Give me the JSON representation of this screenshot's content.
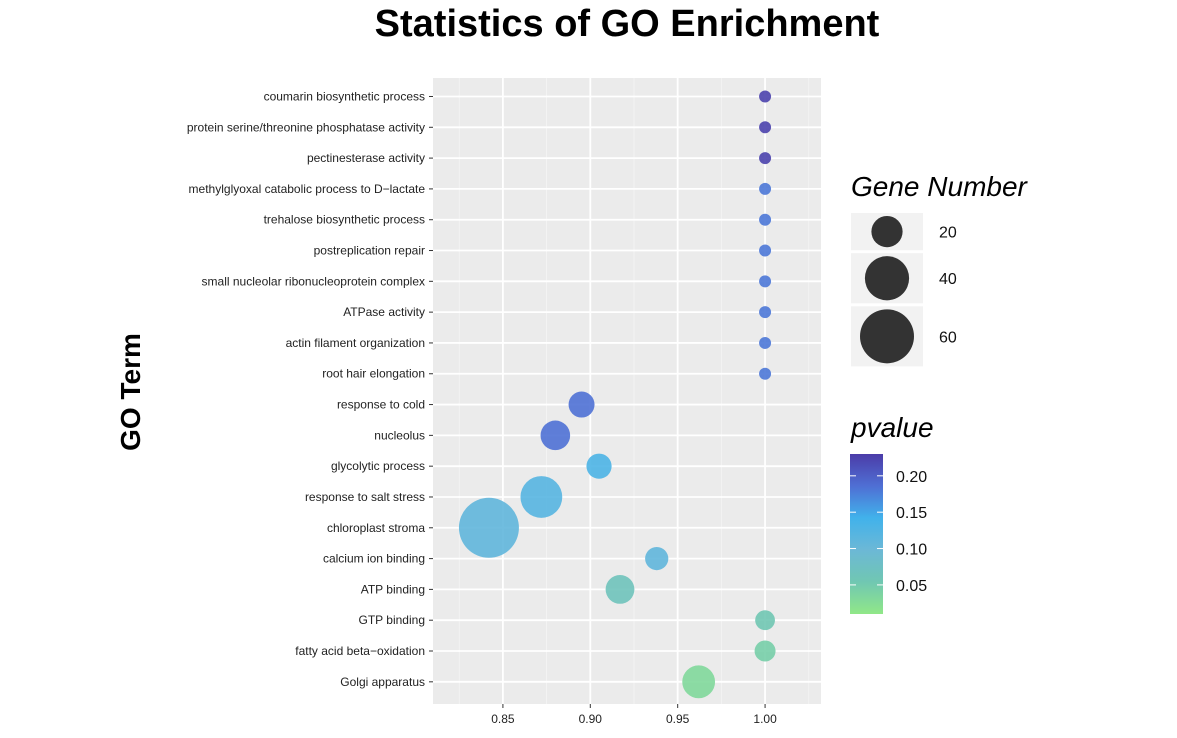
{
  "chart_data": {
    "type": "scatter",
    "title": "Statistics of GO Enrichment",
    "xlabel": "",
    "ylabel": "GO Term",
    "xlim": [
      0.81,
      1.032
    ],
    "xticks": [
      "0.85",
      "0.90",
      "0.95",
      "1.00"
    ],
    "xtick_values": [
      0.85,
      0.9,
      0.95,
      1.0
    ],
    "grid": true,
    "categories": [
      "coumarin biosynthetic process",
      "protein serine/threonine phosphatase activity",
      "pectinesterase activity",
      "methylglyoxal catabolic process to D−lactate",
      "trehalose biosynthetic process",
      "postreplication repair",
      "small nucleolar ribonucleoprotein complex",
      "ATPase activity",
      "actin filament organization",
      "root hair elongation",
      "response to cold",
      "nucleolus",
      "glycolytic process",
      "response to salt stress",
      "chloroplast stroma",
      "calcium ion binding",
      "ATP binding",
      "GTP binding",
      "fatty acid beta−oxidation",
      "Golgi apparatus"
    ],
    "x": [
      1.0,
      1.0,
      1.0,
      1.0,
      1.0,
      1.0,
      1.0,
      1.0,
      1.0,
      1.0,
      0.895,
      0.88,
      0.905,
      0.872,
      0.842,
      0.938,
      0.917,
      1.0,
      1.0,
      0.962
    ],
    "size": [
      3,
      3,
      3,
      3,
      3,
      3,
      3,
      3,
      3,
      3,
      14,
      18,
      13,
      36,
      74,
      11,
      17,
      8,
      9,
      22
    ],
    "pvalue": [
      0.225,
      0.225,
      0.225,
      0.18,
      0.18,
      0.18,
      0.18,
      0.18,
      0.18,
      0.18,
      0.185,
      0.185,
      0.13,
      0.12,
      0.11,
      0.11,
      0.065,
      0.055,
      0.045,
      0.03
    ],
    "legend_size": {
      "title": "Gene Number",
      "labels": [
        "20",
        "40",
        "60"
      ],
      "values": [
        20,
        40,
        60
      ]
    },
    "legend_color": {
      "title": "pvalue",
      "labels": [
        "0.20",
        "0.15",
        "0.10",
        "0.05"
      ],
      "values": [
        0.2,
        0.15,
        0.1,
        0.05
      ],
      "range": [
        0.01,
        0.23
      ],
      "colors": [
        "#90E788",
        "#70C7B2",
        "#6CB8D6",
        "#41B2EB",
        "#4F6FD4",
        "#4B3CA8"
      ]
    },
    "legend_placement": "right"
  }
}
